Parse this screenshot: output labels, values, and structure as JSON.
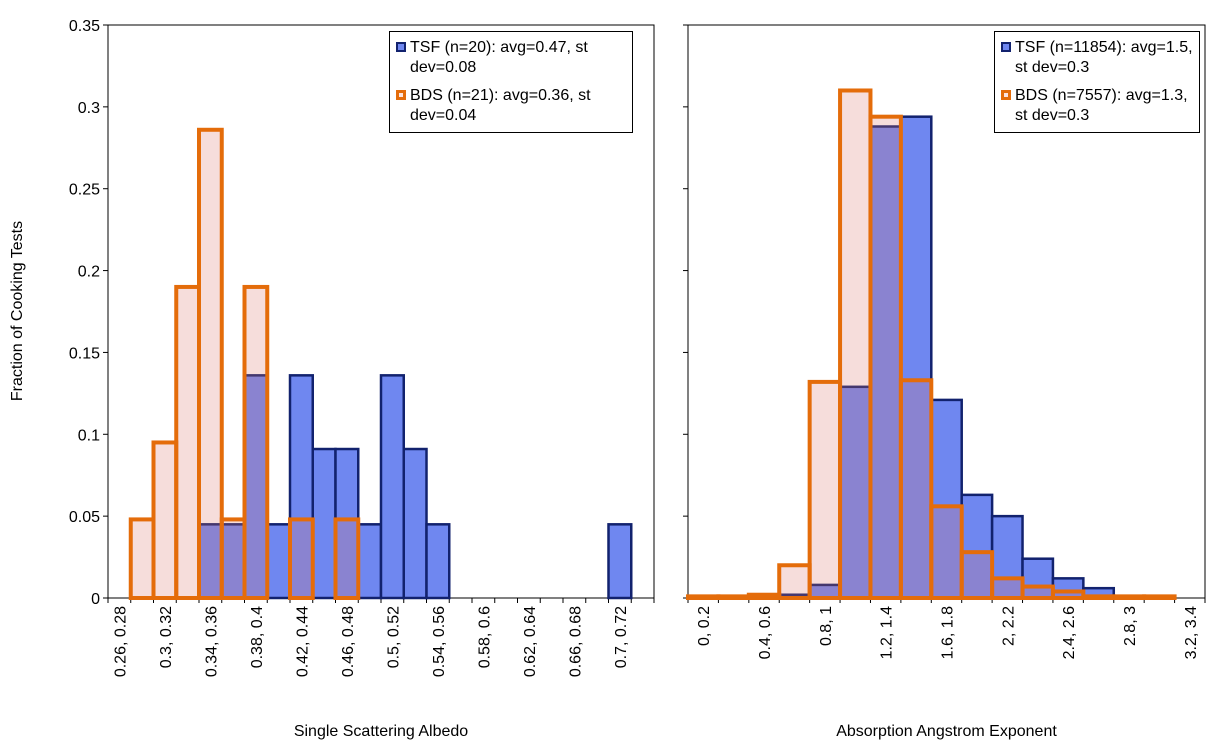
{
  "chart_data": [
    {
      "type": "bar",
      "x_label": "Single Scattering Albedo",
      "y_label": "Fraction of Cooking Tests",
      "categories": [
        "0.26, 0.28",
        null,
        "0.3, 0.32",
        null,
        "0.34, 0.36",
        null,
        "0.38, 0.4",
        null,
        "0.42, 0.44",
        null,
        "0.46, 0.48",
        null,
        "0.5, 0.52",
        null,
        "0.54, 0.56",
        null,
        "0.58, 0.6",
        null,
        "0.62, 0.64",
        null,
        "0.66, 0.68",
        null,
        "0.7, 0.72",
        null
      ],
      "series": [
        {
          "name": "TSF (n=20): avg=0.47, st dev=0.08",
          "color": "#6f87f0",
          "values": [
            0,
            0,
            0,
            0,
            0.045,
            0.045,
            0.136,
            0.045,
            0.136,
            0.091,
            0.091,
            0.045,
            0.136,
            0.091,
            0.045,
            0,
            0,
            0,
            0,
            0,
            0,
            0,
            0.045,
            0
          ]
        },
        {
          "name": "BDS (n=21): avg=0.36, st dev=0.04",
          "color": "#e46c0a",
          "values": [
            0,
            0.048,
            0.095,
            0.19,
            0.286,
            0.048,
            0.19,
            0,
            0.048,
            0,
            0.048,
            0,
            0,
            0,
            0,
            0,
            0,
            0,
            0,
            0,
            0,
            0,
            0,
            0
          ]
        }
      ],
      "ylim": [
        0,
        0.35
      ],
      "yticks": [
        0,
        0.05,
        0.1,
        0.15,
        0.2,
        0.25,
        0.3,
        0.35
      ],
      "show_ytick_labels": true
    },
    {
      "type": "bar",
      "x_label": "Absorption Angstrom Exponent",
      "categories": [
        "0, 0.2",
        null,
        "0.4, 0.6",
        null,
        "0.8, 1",
        null,
        "1.2, 1.4",
        null,
        "1.6, 1.8",
        null,
        "2, 2.2",
        null,
        "2.4, 2.6",
        null,
        "2.8, 3",
        null,
        "3.2, 3.4"
      ],
      "series": [
        {
          "name": "TSF (n=11854): avg=1.5, st dev=0.3",
          "color": "#6f87f0",
          "values": [
            0,
            0,
            0,
            0.002,
            0.008,
            0.129,
            0.288,
            0.294,
            0.121,
            0.063,
            0.05,
            0.024,
            0.012,
            0.006,
            0.001,
            0,
            0
          ]
        },
        {
          "name": "BDS (n=7557): avg=1.3, st dev=0.3",
          "color": "#e46c0a",
          "values": [
            0.001,
            0.001,
            0.002,
            0.02,
            0.132,
            0.31,
            0.294,
            0.133,
            0.056,
            0.028,
            0.012,
            0.007,
            0.004,
            0.001,
            0.001,
            0.001,
            0
          ]
        }
      ],
      "ylim": [
        0,
        0.35
      ],
      "yticks": [
        0,
        0.05,
        0.1,
        0.15,
        0.2,
        0.25,
        0.3,
        0.35
      ],
      "show_ytick_labels": false
    }
  ]
}
